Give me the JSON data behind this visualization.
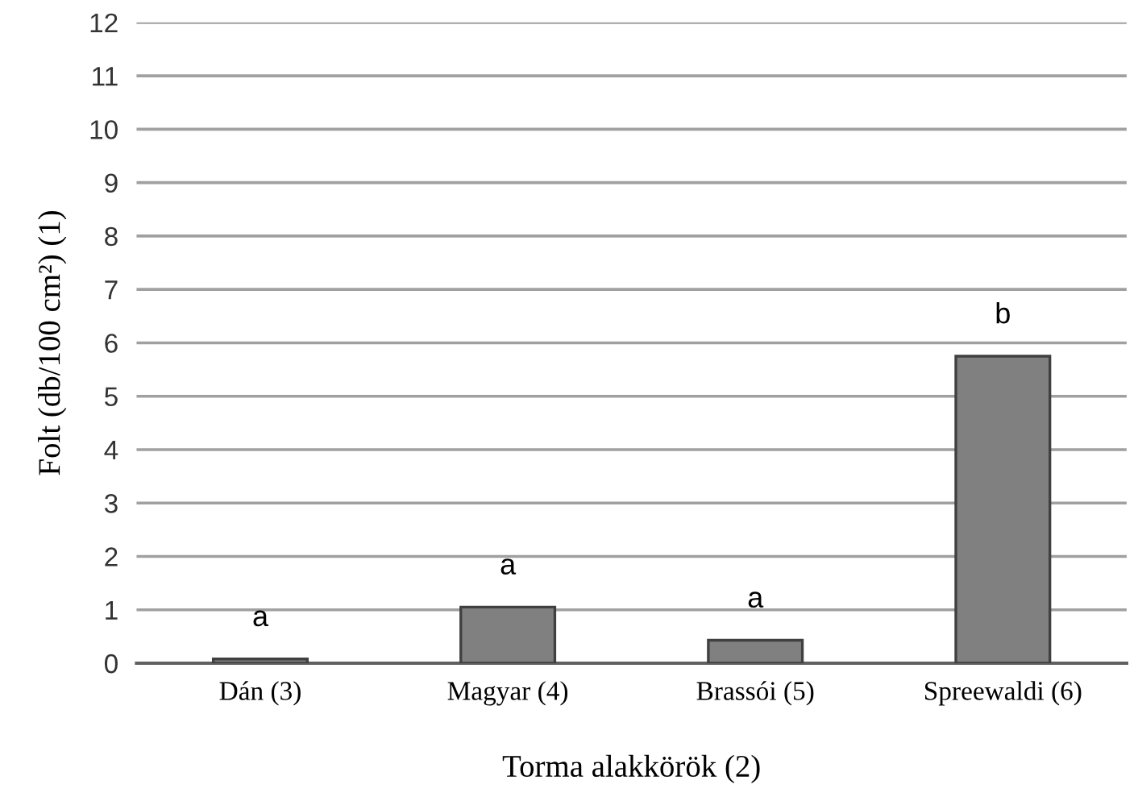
{
  "chart_data": {
    "type": "bar",
    "xlabel": "Torma alakkörök (2)",
    "ylabel": "Folt (db/100 cm²) (1)",
    "categories": [
      "Dán (3)",
      "Magyar (4)",
      "Brassói (5)",
      "Spreewaldi (6)"
    ],
    "values": [
      0.08,
      1.05,
      0.43,
      5.75
    ],
    "color": "#808080",
    "ylim": [
      0,
      12
    ],
    "yticks": [
      0,
      1,
      2,
      3,
      4,
      5,
      6,
      7,
      8,
      9,
      10,
      11,
      12
    ],
    "grid": "y",
    "legend": false,
    "annotations": [
      {
        "text": "a",
        "x": "Dán (3)",
        "y": 0.08
      },
      {
        "text": "a",
        "x": "Magyar (4)",
        "y": 1.05
      },
      {
        "text": "a",
        "x": "Brassói (5)",
        "y": 0.43
      },
      {
        "text": "b",
        "x": "Spreewaldi (6)",
        "y": 5.75
      }
    ]
  }
}
